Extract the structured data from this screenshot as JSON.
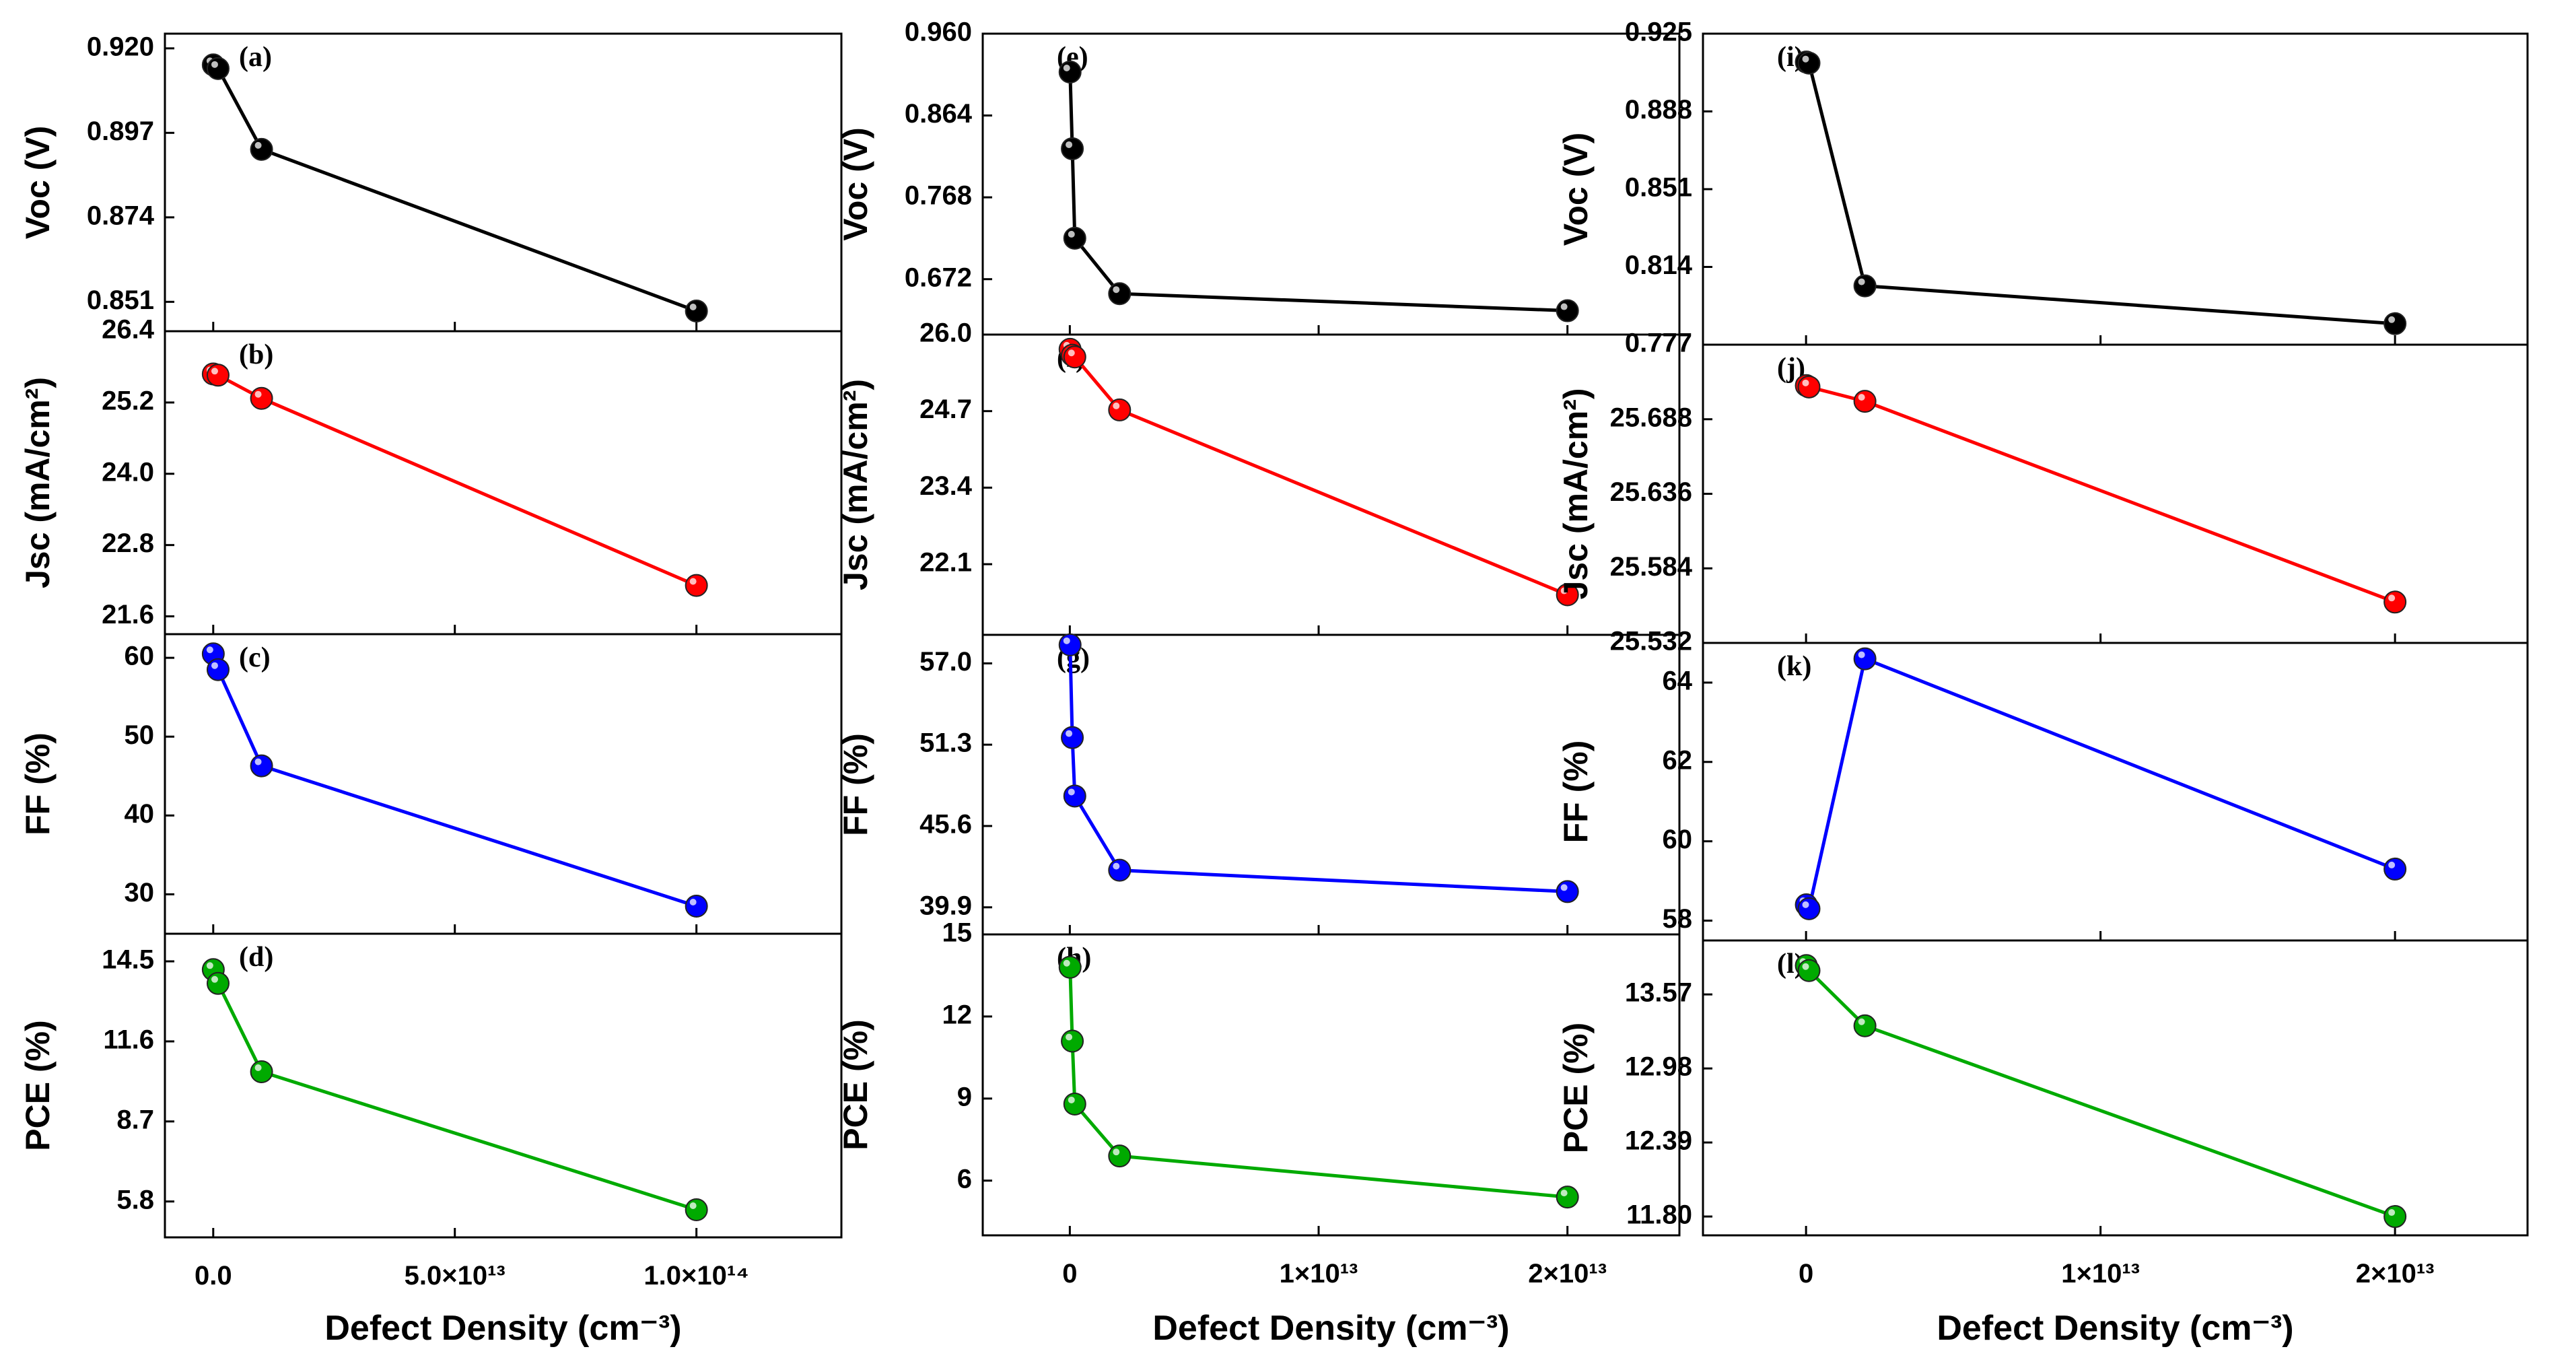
{
  "chart_data": [
    {
      "type": "line",
      "column": 1,
      "xlabel": "Defect Density (cm⁻³)",
      "xlim": [
        -10000000000000.0,
        130000000000000.0
      ],
      "x": [
        10000000000.0,
        1000000000000.0,
        10000000000000.0,
        100000000000000.0
      ],
      "xticks": [
        {
          "value": 0,
          "label": "0.0"
        },
        {
          "value": 50000000000000.0,
          "label": "5.0×10¹³"
        },
        {
          "value": 100000000000000.0,
          "label": "1.0×10¹⁴"
        }
      ],
      "panels": [
        {
          "id": "a",
          "panel_label": "(a)",
          "ylabel": "Voc (V)",
          "color": "#000000",
          "ylim": [
            0.843,
            0.924
          ],
          "yticks": [
            "0.851",
            "0.874",
            "0.897",
            "0.920"
          ],
          "values": [
            0.9155,
            0.9145,
            0.8925,
            0.8485
          ]
        },
        {
          "id": "b",
          "panel_label": "(b)",
          "ylabel": "Jsc (mA/cm²)",
          "color": "#ff0000",
          "ylim": [
            21.3,
            26.4
          ],
          "yticks": [
            "21.6",
            "22.8",
            "24.0",
            "25.2",
            "26.4"
          ],
          "values": [
            25.68,
            25.66,
            25.27,
            22.12
          ]
        },
        {
          "id": "c",
          "panel_label": "(c)",
          "ylabel": "FF (%)",
          "color": "#0000ff",
          "ylim": [
            25,
            63
          ],
          "yticks": [
            "30",
            "40",
            "50",
            "60"
          ],
          "values": [
            60.5,
            58.5,
            46.3,
            28.5
          ]
        },
        {
          "id": "d",
          "panel_label": "(d)",
          "ylabel": "PCE (%)",
          "color": "#00aa00",
          "ylim": [
            4.5,
            15.5
          ],
          "yticks": [
            "5.8",
            "8.7",
            "11.6",
            "14.5"
          ],
          "values": [
            14.2,
            13.7,
            10.5,
            5.5
          ]
        }
      ]
    },
    {
      "type": "line",
      "column": 2,
      "xlabel": "Defect Density (cm⁻³)",
      "xlim": [
        -3500000000000.0,
        24500000000000.0
      ],
      "x": [
        10000000000.0,
        100000000000.0,
        200000000000.0,
        2000000000000.0,
        20000000000000.0
      ],
      "xticks": [
        {
          "value": 0,
          "label": "0"
        },
        {
          "value": 10000000000000.0,
          "label": "1×10¹³"
        },
        {
          "value": 20000000000000.0,
          "label": "2×10¹³"
        }
      ],
      "panels": [
        {
          "id": "e",
          "panel_label": "(e)",
          "ylabel": "Voc (V)",
          "color": "#000000",
          "ylim": [
            0.607,
            0.96
          ],
          "yticks": [
            "0.672",
            "0.768",
            "0.864",
            "0.960"
          ],
          "values": [
            0.915,
            0.825,
            0.72,
            0.655,
            0.635
          ]
        },
        {
          "id": "f",
          "panel_label": "(f)",
          "ylabel": "Jsc (mA/cm²)",
          "color": "#ff0000",
          "ylim": [
            20.9,
            26.0
          ],
          "yticks": [
            "22.1",
            "23.4",
            "24.7",
            "26.0"
          ],
          "values": [
            25.75,
            25.65,
            25.62,
            24.72,
            21.58
          ]
        },
        {
          "id": "g",
          "panel_label": "(g)",
          "ylabel": "FF (%)",
          "color": "#0000ff",
          "ylim": [
            38.0,
            59.0
          ],
          "yticks": [
            "39.9",
            "45.6",
            "51.3",
            "57.0"
          ],
          "values": [
            58.3,
            51.8,
            47.7,
            42.5,
            41.0
          ]
        },
        {
          "id": "h",
          "panel_label": "(h)",
          "ylabel": "PCE (%)",
          "color": "#00aa00",
          "ylim": [
            4.0,
            15.0
          ],
          "yticks": [
            "6",
            "9",
            "12",
            "15"
          ],
          "values": [
            13.8,
            11.1,
            8.8,
            6.9,
            5.4
          ]
        }
      ]
    },
    {
      "type": "line",
      "column": 3,
      "xlabel": "Defect Density (cm⁻³)",
      "xlim": [
        -3500000000000.0,
        24500000000000.0
      ],
      "x": [
        10000000000.0,
        100000000000.0,
        2000000000000.0,
        20000000000000.0
      ],
      "xticks": [
        {
          "value": 0,
          "label": "0"
        },
        {
          "value": 10000000000000.0,
          "label": "1×10¹³"
        },
        {
          "value": 20000000000000.0,
          "label": "2×10¹³"
        }
      ],
      "panels": [
        {
          "id": "i",
          "panel_label": "(i)",
          "ylabel": "Voc (V)",
          "color": "#000000",
          "ylim": [
            0.777,
            0.925
          ],
          "yticks": [
            "0.777",
            "0.814",
            "0.851",
            "0.888",
            "0.925"
          ],
          "values": [
            0.9115,
            0.911,
            0.805,
            0.787
          ]
        },
        {
          "id": "j",
          "panel_label": "(j)",
          "ylabel": "Jsc (mA/cm²)",
          "color": "#ff0000",
          "ylim": [
            25.532,
            25.74
          ],
          "yticks": [
            "25.532",
            "25.584",
            "25.636",
            "25.688"
          ],
          "values": [
            25.7115,
            25.7105,
            25.7005,
            25.5605
          ]
        },
        {
          "id": "k",
          "panel_label": "(k)",
          "ylabel": "FF (%)",
          "color": "#0000ff",
          "ylim": [
            57.5,
            65.0
          ],
          "yticks": [
            "58",
            "60",
            "62",
            "64"
          ],
          "values": [
            58.4,
            58.3,
            64.6,
            59.3
          ]
        },
        {
          "id": "l",
          "panel_label": "(l)",
          "ylabel": "PCE (%)",
          "color": "#00aa00",
          "ylim": [
            11.65,
            14.0
          ],
          "yticks": [
            "11.80",
            "12.39",
            "12.98",
            "13.57"
          ],
          "values": [
            13.8,
            13.76,
            13.32,
            11.8
          ]
        }
      ]
    }
  ]
}
